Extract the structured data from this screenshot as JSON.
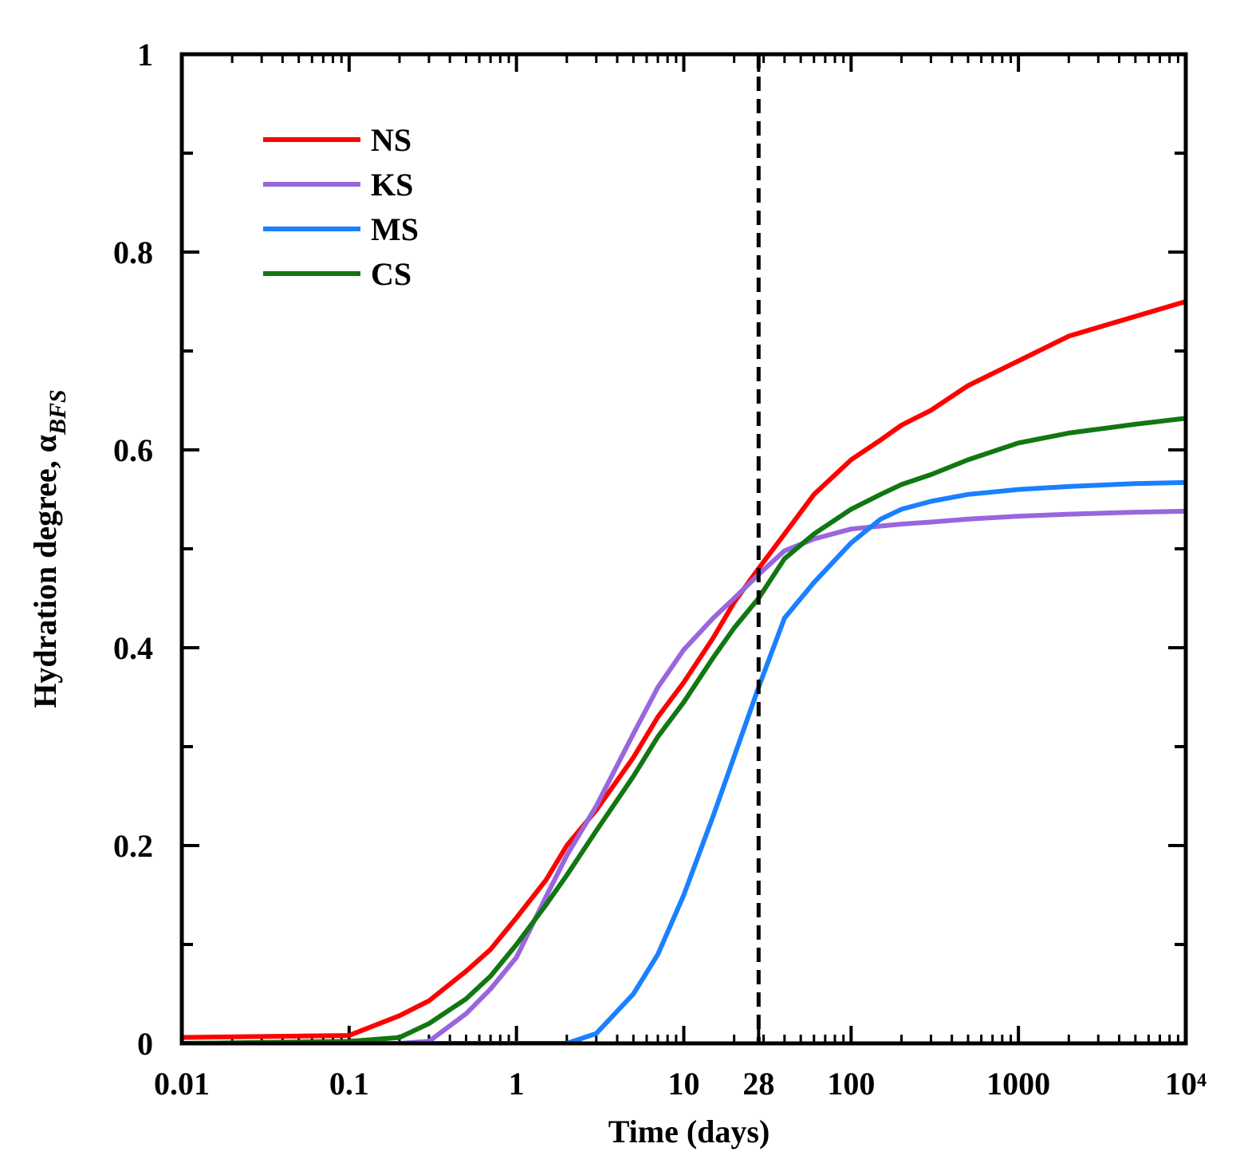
{
  "chart_data": {
    "type": "line",
    "xlabel": "Time (days)",
    "ylabel": "Hydration degree, α",
    "ylabel_subscript": "BFS",
    "xscale": "log",
    "xlim": [
      0.01,
      10000
    ],
    "xticks": [
      0.01,
      0.1,
      1,
      10,
      28,
      100,
      1000,
      {
        "value": 10000,
        "label": "10⁴"
      }
    ],
    "ylim": [
      0,
      1
    ],
    "yticks": [
      0,
      0.2,
      0.4,
      0.6,
      0.8,
      1
    ],
    "y_minor_ticks": [
      0.1,
      0.3,
      0.5,
      0.7,
      0.9
    ],
    "vline": 28,
    "legend": "upper left",
    "x": [
      0.01,
      0.1,
      0.2,
      0.3,
      0.5,
      0.7,
      1,
      1.5,
      2,
      3,
      5,
      7,
      10,
      15,
      20,
      28,
      40,
      60,
      100,
      150,
      200,
      300,
      500,
      1000,
      2000,
      5000,
      10000
    ],
    "series": [
      {
        "name": "NS",
        "color": "#ff0000",
        "values": [
          0.006,
          0.008,
          0.028,
          0.043,
          0.073,
          0.095,
          0.127,
          0.165,
          0.2,
          0.236,
          0.289,
          0.33,
          0.365,
          0.41,
          0.446,
          0.48,
          0.515,
          0.555,
          0.59,
          0.61,
          0.625,
          0.64,
          0.665,
          0.69,
          0.715,
          0.735,
          0.75
        ]
      },
      {
        "name": "KS",
        "color": "#9966dd",
        "values": [
          0,
          0,
          0,
          0.002,
          0.03,
          0.055,
          0.087,
          0.148,
          0.19,
          0.24,
          0.313,
          0.36,
          0.398,
          0.43,
          0.45,
          0.474,
          0.498,
          0.51,
          0.52,
          0.523,
          0.525,
          0.527,
          0.53,
          0.533,
          0.535,
          0.537,
          0.538
        ]
      },
      {
        "name": "MS",
        "color": "#1a80ff",
        "values": [
          0,
          0,
          0,
          0,
          0,
          0,
          0,
          0,
          0,
          0.01,
          0.05,
          0.09,
          0.15,
          0.23,
          0.29,
          0.36,
          0.43,
          0.466,
          0.506,
          0.53,
          0.54,
          0.548,
          0.555,
          0.56,
          0.563,
          0.566,
          0.567
        ]
      },
      {
        "name": "CS",
        "color": "#117711",
        "values": [
          0,
          0.002,
          0.006,
          0.02,
          0.045,
          0.068,
          0.1,
          0.14,
          0.17,
          0.215,
          0.27,
          0.31,
          0.345,
          0.39,
          0.42,
          0.45,
          0.49,
          0.515,
          0.54,
          0.555,
          0.565,
          0.575,
          0.59,
          0.607,
          0.617,
          0.626,
          0.632
        ]
      }
    ]
  }
}
